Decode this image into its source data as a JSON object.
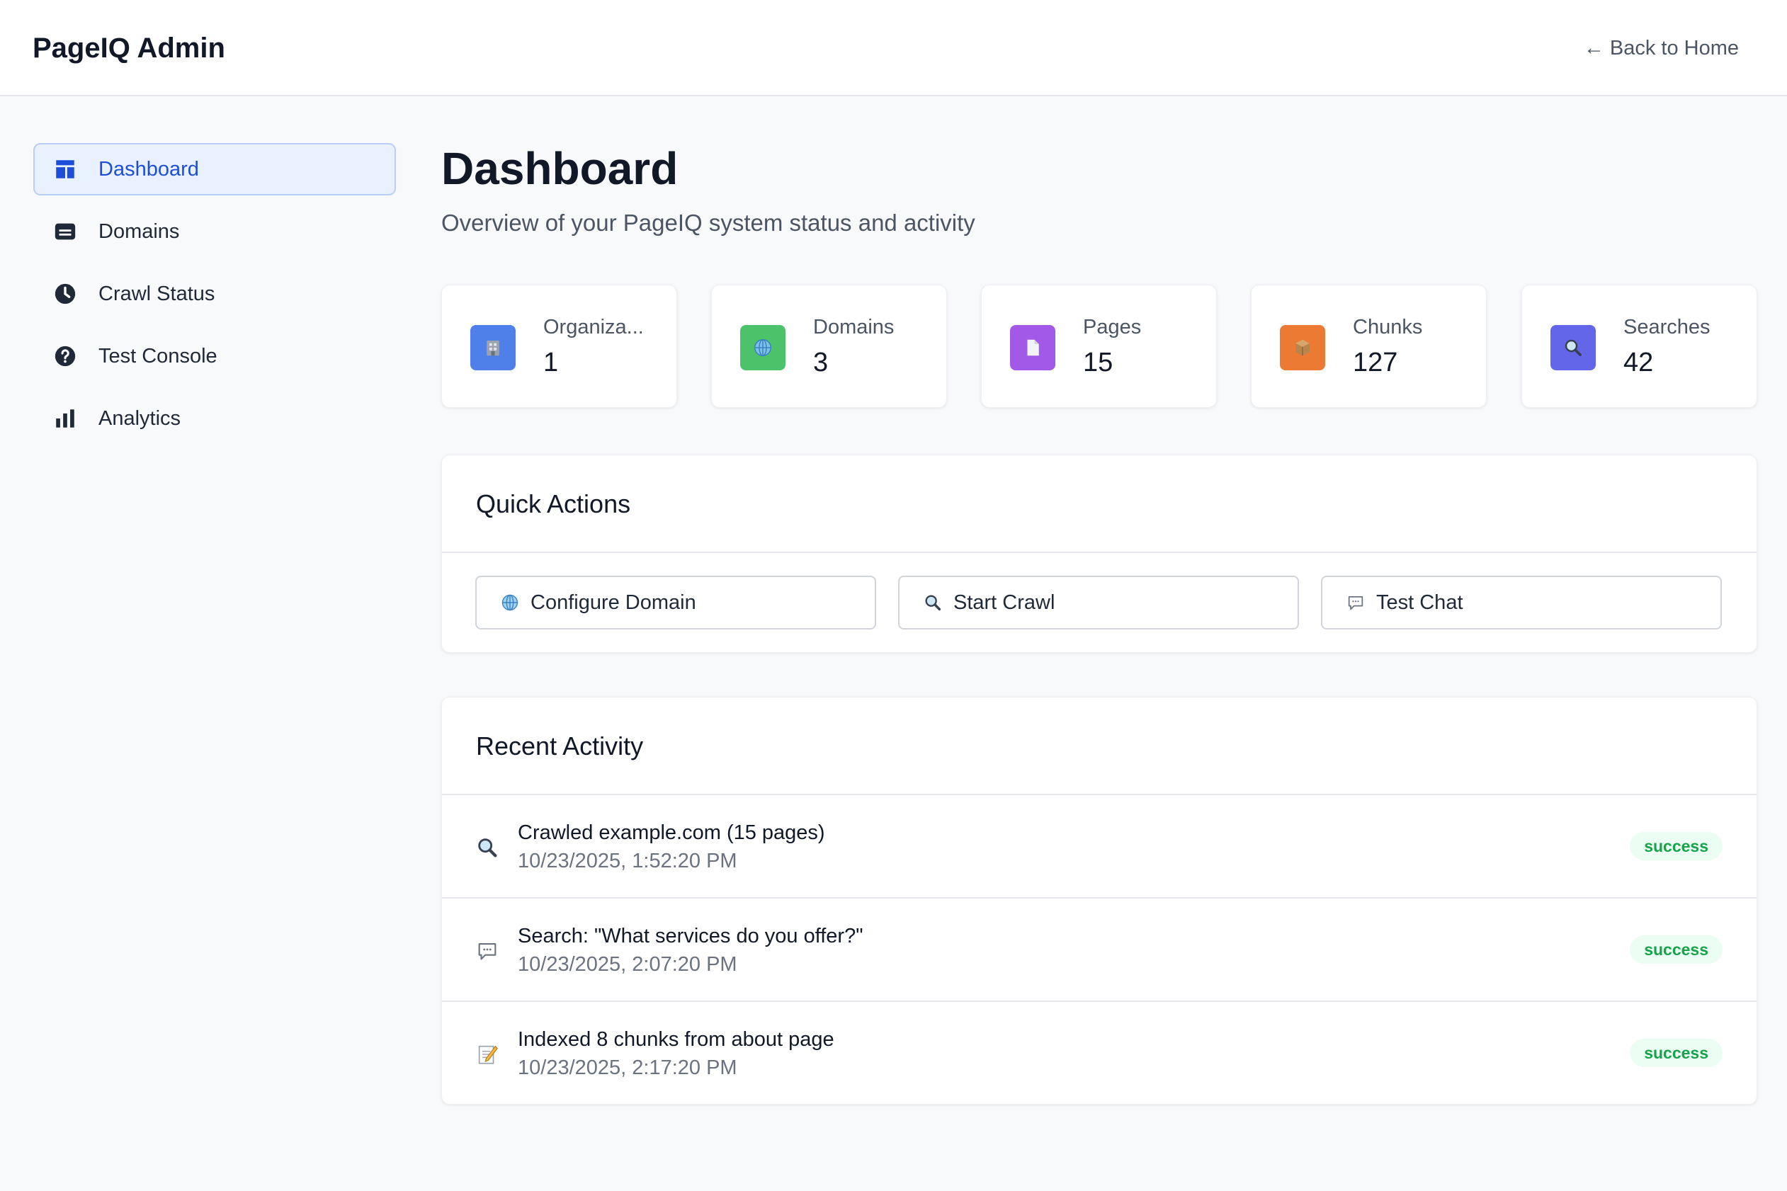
{
  "header": {
    "brand": "PageIQ Admin",
    "back_link": "← Back to Home"
  },
  "sidebar": {
    "items": [
      {
        "label": "Dashboard",
        "icon": "layout-icon",
        "active": true
      },
      {
        "label": "Domains",
        "icon": "card-icon",
        "active": false
      },
      {
        "label": "Crawl Status",
        "icon": "clock-icon",
        "active": false
      },
      {
        "label": "Test Console",
        "icon": "help-circle-icon",
        "active": false
      },
      {
        "label": "Analytics",
        "icon": "bar-chart-icon",
        "active": false
      }
    ]
  },
  "main": {
    "title": "Dashboard",
    "subtitle": "Overview of your PageIQ system status and activity"
  },
  "stats": [
    {
      "label": "Organiza...",
      "value": "1",
      "icon": "building-icon",
      "color": "#4f7fe8"
    },
    {
      "label": "Domains",
      "value": "3",
      "icon": "globe-icon",
      "color": "#4cc26a"
    },
    {
      "label": "Pages",
      "value": "15",
      "icon": "page-icon",
      "color": "#a259e8"
    },
    {
      "label": "Chunks",
      "value": "127",
      "icon": "package-icon",
      "color": "#ec7a33"
    },
    {
      "label": "Searches",
      "value": "42",
      "icon": "magnifier-icon",
      "color": "#6366e8"
    }
  ],
  "quick_actions": {
    "title": "Quick Actions",
    "buttons": [
      {
        "label": "Configure Domain",
        "icon": "globe-icon"
      },
      {
        "label": "Start Crawl",
        "icon": "magnifier-icon"
      },
      {
        "label": "Test Chat",
        "icon": "speech-bubble-icon"
      }
    ]
  },
  "recent_activity": {
    "title": "Recent Activity",
    "items": [
      {
        "title": "Crawled example.com (15 pages)",
        "time": "10/23/2025, 1:52:20 PM",
        "status": "success",
        "icon": "magnifier-icon"
      },
      {
        "title": "Search: \"What services do you offer?\"",
        "time": "10/23/2025, 2:07:20 PM",
        "status": "success",
        "icon": "speech-bubble-icon"
      },
      {
        "title": "Indexed 8 chunks from about page",
        "time": "10/23/2025, 2:17:20 PM",
        "status": "success",
        "icon": "memo-icon"
      }
    ]
  },
  "colors": {
    "accent": "#1d4ed8",
    "success": "#16a34a"
  }
}
